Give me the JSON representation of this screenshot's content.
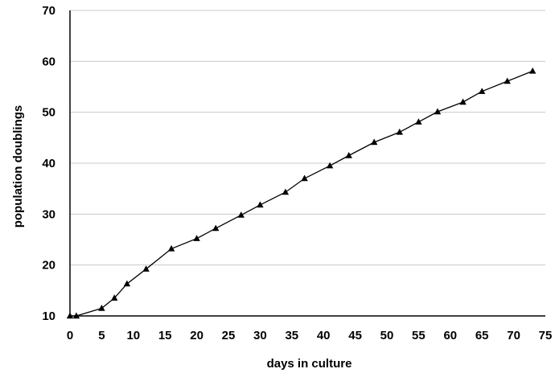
{
  "chart_data": {
    "type": "line",
    "title": "",
    "xlabel": "days in culture",
    "ylabel": "population doublings",
    "xlim": [
      0,
      75
    ],
    "ylim": [
      10,
      70
    ],
    "xticks": [
      0,
      5,
      10,
      15,
      20,
      25,
      30,
      35,
      40,
      45,
      50,
      55,
      60,
      65,
      70,
      75
    ],
    "yticks": [
      10,
      20,
      30,
      40,
      50,
      60,
      70
    ],
    "grid": "horizontal",
    "legend": "none",
    "series": [
      {
        "marker": "triangle",
        "color": "#000000",
        "x": [
          0,
          1,
          5,
          7,
          9,
          12,
          16,
          20,
          23,
          27,
          30,
          34,
          37,
          41,
          44,
          48,
          52,
          55,
          58,
          62,
          65,
          69,
          73
        ],
        "y": [
          10,
          10,
          11.5,
          13.5,
          16.3,
          19.2,
          23.2,
          25.2,
          27.2,
          29.8,
          31.8,
          34.3,
          37,
          39.5,
          41.5,
          44.1,
          46.1,
          48.1,
          50.1,
          52,
          54.1,
          56.1,
          58.1
        ]
      }
    ]
  }
}
